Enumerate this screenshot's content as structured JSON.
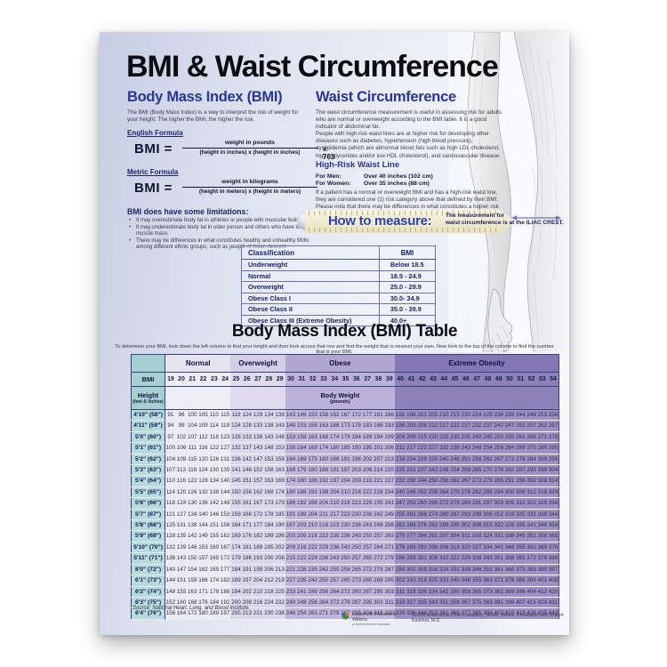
{
  "poster": {
    "title": "BMI & Waist Circumference",
    "bmi_section": {
      "heading": "Body Mass Index (BMI)",
      "intro": "The BMI (Body Mass Index) is a way to interpret the risk of weight for your height. The higher the BMI, the higher the risk.",
      "english_formula": {
        "label": "English Formula",
        "lhs": "BMI =",
        "numerator": "weight in pounds",
        "denominator": "(height in inches) x (height in inches)",
        "multiplier": "x 703"
      },
      "metric_formula": {
        "label": "Metric Formula",
        "lhs": "BMI =",
        "numerator": "weight in kilograms",
        "denominator": "(height in meters) x (height in meters)"
      },
      "limitations": {
        "heading": "BMI does have some limitations:",
        "bullets": [
          "It may overestimate body fat in athletes or people with muscular build.",
          "It may underestimate body fat in older person and others who have lost muscle mass.",
          "There may be differences in what constitutes healthy and unhealthy BMIs among different ethnic groups, such as people of Asian descent."
        ]
      }
    },
    "waist_section": {
      "heading": "Waist Circumference",
      "para1": "The waist circumference measurement is useful in assessing risk for adults who are normal or overweight according to the BMI table. It is a good indicator of abdominal fat.",
      "para2": "People with high-risk waist lines are at higher risk for developing other diseases such as diabetes, hypertension (high blood pressure), dyslipidemia (which are abnormal blood fats such as high LDL cholesterol, high triglycerides and/or low HDL cholesterol), and cardiovascular disease.",
      "high_risk": {
        "heading": "High-Risk Waist Line",
        "men_label": "For Men:",
        "men_value": "Over 40 inches (102 cm)",
        "women_label": "For Women:",
        "women_value": "Over 35 inches (88 cm)",
        "note": "If a patient has a normal or overweight BMI and has a high-risk waist line, they are considered one (1) risk category above that defined by their BMI. Please note that there may be differences in what constitutes a higher risk waist line among different ethnic groups."
      },
      "how_to_measure": {
        "label": "How to measure:",
        "note_line1": "The measurement for",
        "note_line2": "waist circumference is at the ILIAC CREST."
      }
    },
    "classification_table": {
      "headers": [
        "Classification",
        "BMI"
      ],
      "rows": [
        [
          "Underweight",
          "Below 18.5"
        ],
        [
          "Normal",
          "18.5 - 24.9"
        ],
        [
          "Overweight",
          "25.0 - 29.9"
        ],
        [
          "Obese Class I",
          "30.0- 34.9"
        ],
        [
          "Obese Class II",
          "35.0 - 39.9"
        ],
        [
          "Obese Class III (Extreme Obesity)",
          "40.0+"
        ]
      ]
    },
    "bmi_table": {
      "title": "Body Mass Index (BMI) Table",
      "instruction": "To determine your BMI, look down the left column to find your height and then look across that row and find the weight that is nearest your own. Now look to the top of the column to find the number that is your BMI.",
      "corner_label": "BMI",
      "height_header": "Height",
      "height_subheader": "(feet & inches)",
      "body_weight_header": "Body Weight",
      "body_weight_subheader": "(pounds)",
      "groups": [
        {
          "label": "Normal",
          "start": 19,
          "end": 24
        },
        {
          "label": "Overweight",
          "start": 25,
          "end": 29
        },
        {
          "label": "Obese",
          "start": 30,
          "end": 39
        },
        {
          "label": "Extreme Obesity",
          "start": 40,
          "end": 54
        }
      ],
      "bmi_values": [
        19,
        20,
        21,
        22,
        23,
        24,
        25,
        26,
        27,
        28,
        29,
        30,
        31,
        32,
        33,
        34,
        35,
        36,
        37,
        38,
        39,
        40,
        41,
        42,
        43,
        44,
        45,
        46,
        47,
        48,
        49,
        50,
        51,
        52,
        53,
        54
      ],
      "rows": [
        {
          "height": "4'10\" (58\")",
          "weights": [
            91,
            96,
            100,
            105,
            110,
            115,
            119,
            124,
            129,
            134,
            138,
            143,
            148,
            153,
            158,
            162,
            167,
            172,
            177,
            181,
            186,
            191,
            196,
            201,
            205,
            210,
            215,
            220,
            224,
            229,
            234,
            239,
            244,
            248,
            253,
            258
          ]
        },
        {
          "height": "4'11\" (59\")",
          "weights": [
            94,
            99,
            104,
            109,
            114,
            119,
            124,
            128,
            133,
            138,
            143,
            148,
            153,
            158,
            163,
            168,
            173,
            178,
            183,
            188,
            193,
            198,
            203,
            208,
            212,
            217,
            222,
            227,
            232,
            237,
            242,
            247,
            252,
            257,
            262,
            267
          ]
        },
        {
          "height": "5'0\" (60\")",
          "weights": [
            97,
            102,
            107,
            112,
            118,
            123,
            128,
            133,
            138,
            143,
            148,
            153,
            158,
            163,
            168,
            174,
            179,
            184,
            189,
            194,
            199,
            204,
            209,
            215,
            220,
            225,
            230,
            235,
            240,
            245,
            250,
            255,
            261,
            266,
            271,
            276
          ]
        },
        {
          "height": "5'1\" (61\")",
          "weights": [
            100,
            106,
            111,
            116,
            122,
            127,
            132,
            137,
            143,
            148,
            153,
            158,
            164,
            169,
            174,
            180,
            185,
            190,
            195,
            201,
            206,
            211,
            217,
            222,
            227,
            232,
            238,
            243,
            248,
            254,
            259,
            264,
            269,
            275,
            280,
            285
          ]
        },
        {
          "height": "5'2\" (62\")",
          "weights": [
            104,
            109,
            115,
            120,
            126,
            131,
            136,
            142,
            147,
            153,
            158,
            164,
            169,
            175,
            180,
            186,
            191,
            196,
            202,
            207,
            213,
            218,
            224,
            229,
            235,
            240,
            246,
            251,
            256,
            262,
            267,
            273,
            278,
            284,
            289,
            295
          ]
        },
        {
          "height": "5'3\" (63\")",
          "weights": [
            107,
            113,
            118,
            124,
            130,
            135,
            141,
            146,
            152,
            158,
            163,
            169,
            175,
            180,
            186,
            191,
            197,
            203,
            208,
            214,
            220,
            225,
            231,
            237,
            242,
            248,
            254,
            259,
            265,
            270,
            278,
            282,
            287,
            293,
            299,
            304
          ]
        },
        {
          "height": "5'4\" (64\")",
          "weights": [
            110,
            116,
            122,
            128,
            134,
            140,
            145,
            151,
            157,
            163,
            169,
            174,
            180,
            186,
            192,
            197,
            204,
            209,
            215,
            221,
            227,
            232,
            238,
            244,
            250,
            256,
            262,
            267,
            273,
            279,
            285,
            291,
            296,
            302,
            308,
            314
          ]
        },
        {
          "height": "5'5\" (65\")",
          "weights": [
            114,
            120,
            126,
            132,
            138,
            144,
            150,
            156,
            162,
            168,
            174,
            180,
            186,
            192,
            198,
            204,
            210,
            216,
            222,
            228,
            234,
            240,
            246,
            252,
            258,
            264,
            270,
            276,
            282,
            288,
            294,
            300,
            306,
            312,
            318,
            324
          ]
        },
        {
          "height": "5'6\" (66\")",
          "weights": [
            118,
            124,
            130,
            136,
            142,
            148,
            155,
            161,
            167,
            173,
            179,
            186,
            192,
            198,
            204,
            210,
            216,
            223,
            229,
            235,
            241,
            247,
            253,
            260,
            266,
            272,
            278,
            284,
            291,
            297,
            303,
            309,
            315,
            322,
            328,
            334
          ]
        },
        {
          "height": "5'7\" (67\")",
          "weights": [
            121,
            127,
            134,
            140,
            146,
            153,
            159,
            166,
            172,
            178,
            185,
            191,
            198,
            204,
            211,
            217,
            223,
            230,
            236,
            242,
            249,
            255,
            261,
            268,
            274,
            280,
            287,
            293,
            299,
            306,
            312,
            319,
            325,
            331,
            338,
            344
          ]
        },
        {
          "height": "5'8\" (68\")",
          "weights": [
            125,
            131,
            138,
            144,
            151,
            158,
            164,
            171,
            177,
            184,
            190,
            197,
            203,
            210,
            216,
            223,
            230,
            236,
            243,
            249,
            256,
            262,
            269,
            276,
            282,
            289,
            295,
            302,
            308,
            315,
            322,
            328,
            335,
            341,
            348,
            354
          ]
        },
        {
          "height": "5'9\" (69\")",
          "weights": [
            128,
            135,
            142,
            149,
            155,
            162,
            169,
            176,
            182,
            189,
            196,
            203,
            209,
            216,
            223,
            230,
            236,
            243,
            250,
            257,
            263,
            270,
            277,
            284,
            291,
            297,
            304,
            311,
            318,
            324,
            331,
            338,
            345,
            351,
            358,
            365
          ]
        },
        {
          "height": "5'10\" (70\")",
          "weights": [
            132,
            139,
            146,
            153,
            160,
            167,
            174,
            181,
            188,
            195,
            202,
            209,
            216,
            222,
            229,
            236,
            243,
            250,
            257,
            264,
            271,
            278,
            285,
            292,
            299,
            306,
            313,
            320,
            327,
            334,
            341,
            348,
            355,
            362,
            369,
            376
          ]
        },
        {
          "height": "5'11\" (71\")",
          "weights": [
            136,
            143,
            150,
            157,
            165,
            172,
            179,
            186,
            193,
            200,
            208,
            215,
            222,
            229,
            236,
            243,
            250,
            257,
            265,
            272,
            279,
            286,
            293,
            301,
            308,
            315,
            322,
            329,
            338,
            343,
            351,
            358,
            365,
            372,
            379,
            386
          ]
        },
        {
          "height": "6'0\" (72\")",
          "weights": [
            140,
            147,
            154,
            162,
            169,
            177,
            184,
            191,
            199,
            206,
            213,
            221,
            228,
            235,
            242,
            250,
            258,
            265,
            272,
            279,
            287,
            294,
            302,
            309,
            316,
            324,
            331,
            338,
            346,
            353,
            361,
            368,
            375,
            383,
            390,
            397
          ]
        },
        {
          "height": "6'1\" (73\")",
          "weights": [
            144,
            151,
            159,
            166,
            174,
            182,
            189,
            197,
            204,
            212,
            219,
            227,
            235,
            242,
            250,
            257,
            265,
            273,
            280,
            288,
            295,
            302,
            310,
            318,
            325,
            333,
            340,
            348,
            355,
            363,
            371,
            378,
            386,
            393,
            401,
            408
          ]
        },
        {
          "height": "6'2\" (74\")",
          "weights": [
            148,
            155,
            163,
            171,
            179,
            186,
            194,
            202,
            210,
            218,
            225,
            233,
            241,
            249,
            256,
            264,
            272,
            280,
            287,
            295,
            303,
            311,
            319,
            326,
            334,
            342,
            350,
            358,
            365,
            373,
            381,
            389,
            396,
            404,
            412,
            420
          ]
        },
        {
          "height": "6'3\" (75\")",
          "weights": [
            152,
            160,
            168,
            176,
            184,
            192,
            200,
            208,
            216,
            224,
            232,
            240,
            248,
            256,
            264,
            272,
            279,
            287,
            295,
            303,
            311,
            319,
            327,
            335,
            343,
            351,
            359,
            367,
            375,
            383,
            391,
            399,
            407,
            415,
            423,
            431
          ]
        },
        {
          "height": "6'4\" (76\")",
          "weights": [
            156,
            164,
            172,
            180,
            189,
            197,
            205,
            213,
            221,
            230,
            238,
            246,
            254,
            263,
            271,
            279,
            287,
            295,
            304,
            312,
            320,
            328,
            336,
            344,
            353,
            361,
            369,
            377,
            385,
            394,
            402,
            410,
            418,
            426,
            435,
            443
          ]
        }
      ]
    },
    "footer": {
      "source": "Source: National Heart, Lung, and Blood Institute.",
      "publisher": "Lippincott Williams & Wilkins",
      "publisher_sub": "a Wolters Kluwer business",
      "copyright": "©2006 Anatomical Chart Company, Skokie, Illinois. Developed with Robert Kushner, M.D."
    },
    "colors": {
      "heading_blue": "#2a3694",
      "teal_header": "#a5cfd0",
      "normal_band": "#e7e4f1",
      "overweight_band": "#d5cfe6",
      "obese_band": "#b1a6d2",
      "extreme_band": "#8378b5",
      "arrow_purple": "#7e6eb8"
    }
  }
}
